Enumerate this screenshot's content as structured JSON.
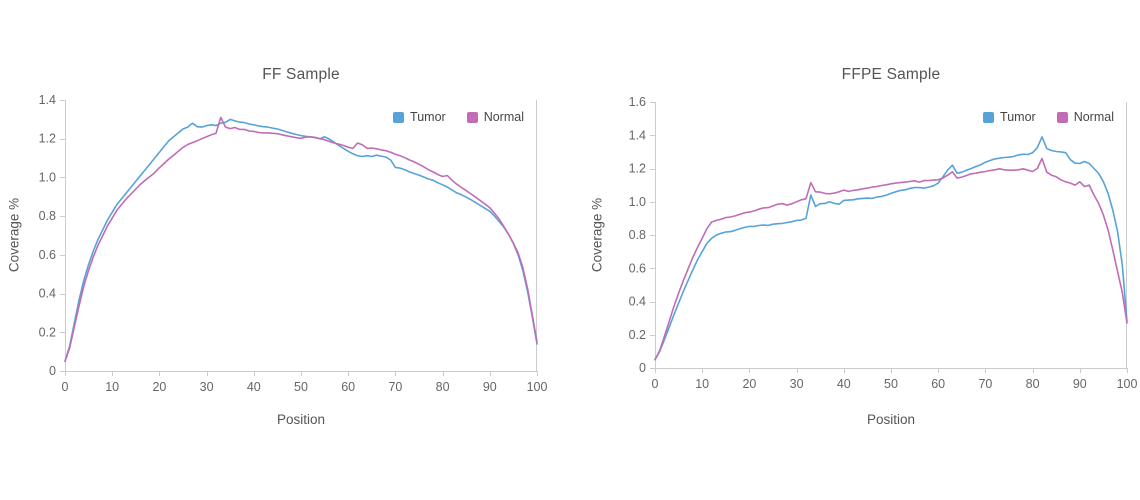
{
  "figure_title": "",
  "colors": {
    "background": "#ffffff",
    "axis_line": "#cccccc",
    "tick_label": "#666666",
    "title_text": "#545454",
    "tumor_series": "#57A3D8",
    "normal_series": "#C26CB6"
  },
  "chart_data": [
    {
      "type": "line",
      "title": "FF Sample",
      "xlabel": "Position",
      "ylabel": "Coverage %",
      "xlim": [
        0,
        100
      ],
      "ylim": [
        0,
        1.4
      ],
      "x_start": 0,
      "x_step": 1,
      "xticks": [
        0,
        10,
        20,
        30,
        40,
        50,
        60,
        70,
        80,
        90,
        100
      ],
      "ytick_labels": [
        "0",
        "0.2",
        "0.4",
        "0.6",
        "0.8",
        "1.0",
        "1.2",
        "1.4"
      ],
      "grid": false,
      "legend_position": "top-right-inside",
      "series": [
        {
          "name": "Tumor",
          "color": "#57A3D8",
          "values": [
            0.05,
            0.13,
            0.25,
            0.37,
            0.47,
            0.55,
            0.62,
            0.68,
            0.73,
            0.78,
            0.82,
            0.86,
            0.89,
            0.92,
            0.95,
            0.98,
            1.01,
            1.04,
            1.07,
            1.1,
            1.13,
            1.16,
            1.19,
            1.21,
            1.23,
            1.25,
            1.26,
            1.28,
            1.262,
            1.26,
            1.268,
            1.272,
            1.268,
            1.28,
            1.285,
            1.3,
            1.292,
            1.286,
            1.283,
            1.276,
            1.272,
            1.266,
            1.262,
            1.26,
            1.255,
            1.25,
            1.243,
            1.235,
            1.228,
            1.222,
            1.216,
            1.212,
            1.21,
            1.205,
            1.2,
            1.21,
            1.198,
            1.182,
            1.165,
            1.15,
            1.135,
            1.122,
            1.112,
            1.108,
            1.112,
            1.108,
            1.115,
            1.11,
            1.105,
            1.09,
            1.052,
            1.048,
            1.04,
            1.028,
            1.02,
            1.012,
            1.002,
            0.992,
            0.985,
            0.972,
            0.962,
            0.95,
            0.935,
            0.92,
            0.91,
            0.898,
            0.885,
            0.87,
            0.855,
            0.84,
            0.825,
            0.8,
            0.772,
            0.742,
            0.705,
            0.658,
            0.6,
            0.52,
            0.41,
            0.28,
            0.14
          ]
        },
        {
          "name": "Normal",
          "color": "#C26CB6",
          "values": [
            0.05,
            0.12,
            0.23,
            0.34,
            0.44,
            0.52,
            0.59,
            0.65,
            0.7,
            0.75,
            0.79,
            0.83,
            0.86,
            0.89,
            0.915,
            0.94,
            0.965,
            0.985,
            1.005,
            1.025,
            1.05,
            1.072,
            1.095,
            1.115,
            1.135,
            1.155,
            1.17,
            1.18,
            1.19,
            1.2,
            1.21,
            1.22,
            1.228,
            1.31,
            1.26,
            1.252,
            1.258,
            1.248,
            1.248,
            1.24,
            1.238,
            1.232,
            1.23,
            1.23,
            1.228,
            1.226,
            1.22,
            1.215,
            1.21,
            1.205,
            1.202,
            1.208,
            1.21,
            1.207,
            1.2,
            1.195,
            1.186,
            1.178,
            1.172,
            1.165,
            1.156,
            1.15,
            1.178,
            1.168,
            1.15,
            1.152,
            1.148,
            1.142,
            1.138,
            1.13,
            1.12,
            1.112,
            1.102,
            1.09,
            1.08,
            1.068,
            1.055,
            1.04,
            1.028,
            1.015,
            1.005,
            1.01,
            0.985,
            0.965,
            0.948,
            0.932,
            0.915,
            0.898,
            0.88,
            0.862,
            0.843,
            0.815,
            0.785,
            0.745,
            0.705,
            0.66,
            0.61,
            0.535,
            0.425,
            0.29,
            0.15
          ]
        }
      ]
    },
    {
      "type": "line",
      "title": "FFPE Sample",
      "xlabel": "Position",
      "ylabel": "Coverage %",
      "xlim": [
        0,
        100
      ],
      "ylim": [
        0,
        1.6
      ],
      "x_start": 0,
      "x_step": 1,
      "xticks": [
        0,
        10,
        20,
        30,
        40,
        50,
        60,
        70,
        80,
        90,
        100
      ],
      "ytick_labels": [
        "0",
        "0.2",
        "0.4",
        "0.6",
        "0.8",
        "1.0",
        "1.2",
        "1.4",
        "1.6"
      ],
      "grid": false,
      "legend_position": "top-right-inside",
      "series": [
        {
          "name": "Tumor",
          "color": "#57A3D8",
          "values": [
            0.05,
            0.1,
            0.17,
            0.245,
            0.32,
            0.39,
            0.46,
            0.525,
            0.59,
            0.65,
            0.7,
            0.75,
            0.78,
            0.8,
            0.81,
            0.818,
            0.82,
            0.828,
            0.838,
            0.846,
            0.852,
            0.852,
            0.857,
            0.86,
            0.858,
            0.865,
            0.868,
            0.87,
            0.875,
            0.88,
            0.888,
            0.89,
            0.9,
            1.04,
            0.972,
            0.988,
            0.99,
            1.0,
            0.99,
            0.985,
            1.008,
            1.01,
            1.012,
            1.018,
            1.02,
            1.022,
            1.02,
            1.028,
            1.032,
            1.04,
            1.05,
            1.06,
            1.068,
            1.072,
            1.08,
            1.085,
            1.085,
            1.082,
            1.088,
            1.096,
            1.112,
            1.15,
            1.19,
            1.22,
            1.172,
            1.178,
            1.19,
            1.2,
            1.212,
            1.222,
            1.238,
            1.248,
            1.258,
            1.262,
            1.266,
            1.268,
            1.272,
            1.282,
            1.286,
            1.284,
            1.295,
            1.325,
            1.39,
            1.32,
            1.308,
            1.302,
            1.3,
            1.295,
            1.253,
            1.232,
            1.23,
            1.242,
            1.23,
            1.2,
            1.17,
            1.12,
            1.05,
            0.95,
            0.82,
            0.62,
            0.28
          ]
        },
        {
          "name": "Normal",
          "color": "#C26CB6",
          "values": [
            0.05,
            0.105,
            0.19,
            0.28,
            0.37,
            0.45,
            0.525,
            0.595,
            0.665,
            0.725,
            0.78,
            0.838,
            0.878,
            0.888,
            0.895,
            0.905,
            0.908,
            0.915,
            0.925,
            0.934,
            0.938,
            0.945,
            0.955,
            0.963,
            0.965,
            0.975,
            0.985,
            0.988,
            0.98,
            0.988,
            1.0,
            1.012,
            1.018,
            1.115,
            1.06,
            1.058,
            1.05,
            1.048,
            1.052,
            1.06,
            1.07,
            1.062,
            1.068,
            1.072,
            1.078,
            1.082,
            1.088,
            1.092,
            1.098,
            1.102,
            1.108,
            1.112,
            1.115,
            1.118,
            1.122,
            1.126,
            1.118,
            1.127,
            1.128,
            1.13,
            1.132,
            1.142,
            1.16,
            1.18,
            1.142,
            1.148,
            1.158,
            1.168,
            1.172,
            1.178,
            1.182,
            1.188,
            1.192,
            1.198,
            1.192,
            1.19,
            1.19,
            1.192,
            1.198,
            1.19,
            1.182,
            1.2,
            1.26,
            1.178,
            1.16,
            1.15,
            1.132,
            1.12,
            1.112,
            1.1,
            1.12,
            1.092,
            1.1,
            1.04,
            0.99,
            0.92,
            0.83,
            0.71,
            0.58,
            0.455,
            0.27
          ]
        }
      ]
    }
  ]
}
